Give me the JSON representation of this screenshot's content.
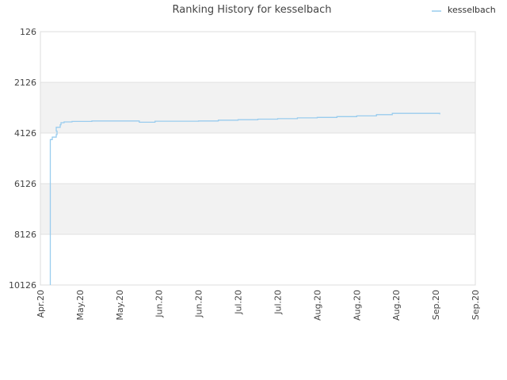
{
  "chart_data": {
    "type": "line",
    "title": "Ranking History for kesselbach",
    "xlabel": "",
    "ylabel": "",
    "y_reversed": true,
    "ylim": [
      126,
      10126
    ],
    "yticks": [
      126,
      2126,
      4126,
      6126,
      8126,
      10126
    ],
    "xticks": [
      "Apr.20",
      "May.20",
      "May.20",
      "Jun.20",
      "Jun.20",
      "Jul.20",
      "Jul.20",
      "Aug.20",
      "Aug.20",
      "Aug.20",
      "Sep.20",
      "Sep.20"
    ],
    "legend_position": "top-right",
    "grid": true,
    "colors": {
      "series": "#99ccee",
      "band": "#f2f2f2",
      "grid": "#e0e0e0",
      "axis": "#dddddd"
    },
    "series": [
      {
        "name": "kesselbach",
        "x": [
          0.25,
          0.25,
          0.25,
          0.3,
          0.4,
          0.42,
          0.4,
          0.5,
          0.52,
          0.6,
          0.7,
          0.8,
          1.0,
          1.3,
          1.9,
          2.5,
          2.9,
          3.3,
          4.0,
          4.5,
          5.0,
          5.5,
          6.0,
          6.5,
          7.0,
          7.5,
          8.0,
          8.5,
          8.9,
          9.3,
          10.1
        ],
        "y": [
          10126,
          5200,
          4386,
          4290,
          4190,
          4050,
          3900,
          3800,
          3720,
          3690,
          3690,
          3670,
          3670,
          3650,
          3650,
          3700,
          3660,
          3660,
          3650,
          3620,
          3600,
          3580,
          3560,
          3530,
          3510,
          3480,
          3450,
          3400,
          3350,
          3350,
          3390
        ]
      }
    ]
  }
}
